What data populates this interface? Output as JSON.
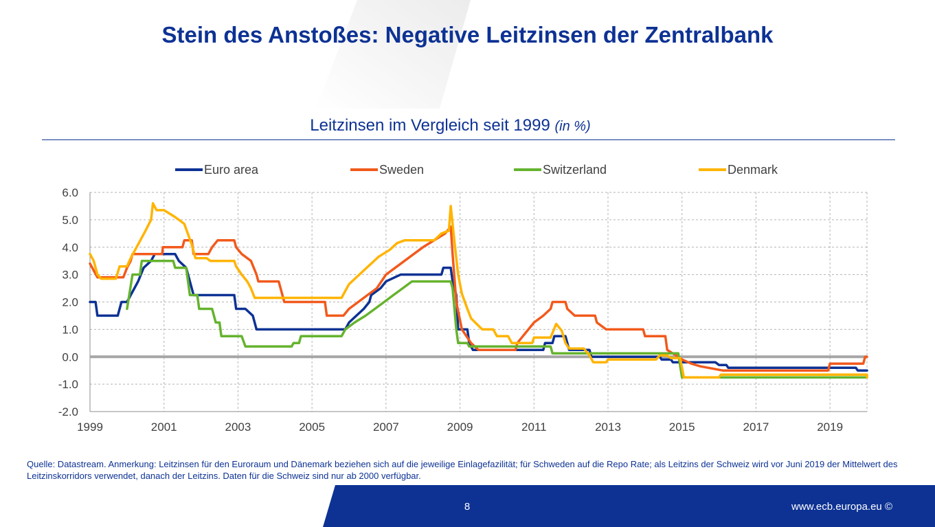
{
  "slide": {
    "title": "Stein des Anstoßes: Negative Leitzinsen der Zentralbank",
    "page_number": "8",
    "footer_url": "www.ecb.europa.eu ©",
    "footnote": "Quelle: Datastream. Anmerkung: Leitzinsen für den Euroraum und Dänemark beziehen sich auf die jeweilige Einlagefazilität; für Schweden auf die Repo Rate; als Leitzins der Schweiz wird vor Juni 2019 der Mittelwert des Leitzinskorridors verwendet, danach der  Leitzins. Daten für die Schweiz sind nur ab 2000 verfügbar.",
    "accent_color": "#0d3294"
  },
  "chart_data": {
    "type": "line",
    "title": "Leitzinsen im Vergleich seit 1999",
    "title_unit": "(in %)",
    "xlim": [
      1999,
      2020
    ],
    "ylim": [
      -2,
      6
    ],
    "x_ticks": [
      "1999",
      "2001",
      "2003",
      "2005",
      "2007",
      "2009",
      "2011",
      "2013",
      "2015",
      "2017",
      "2019"
    ],
    "y_ticks": [
      "6.0",
      "5.0",
      "4.0",
      "3.0",
      "2.0",
      "1.0",
      "0.0",
      "-1.0",
      "-2.0"
    ],
    "grid": "dashed",
    "legend_position": "top",
    "series": [
      {
        "name": "Euro area",
        "color": "#0d3294",
        "points": [
          [
            1999.0,
            2.0
          ],
          [
            1999.15,
            2.0
          ],
          [
            1999.2,
            1.5
          ],
          [
            1999.75,
            1.5
          ],
          [
            1999.85,
            2.0
          ],
          [
            2000.0,
            2.0
          ],
          [
            2000.1,
            2.25
          ],
          [
            2000.2,
            2.5
          ],
          [
            2000.3,
            2.75
          ],
          [
            2000.45,
            3.25
          ],
          [
            2000.65,
            3.5
          ],
          [
            2000.75,
            3.75
          ],
          [
            2001.3,
            3.75
          ],
          [
            2001.4,
            3.5
          ],
          [
            2001.6,
            3.25
          ],
          [
            2001.7,
            2.75
          ],
          [
            2001.8,
            2.25
          ],
          [
            2002.9,
            2.25
          ],
          [
            2002.95,
            1.75
          ],
          [
            2003.2,
            1.75
          ],
          [
            2003.4,
            1.5
          ],
          [
            2003.5,
            1.0
          ],
          [
            2005.9,
            1.0
          ],
          [
            2006.0,
            1.25
          ],
          [
            2006.2,
            1.5
          ],
          [
            2006.4,
            1.75
          ],
          [
            2006.55,
            2.0
          ],
          [
            2006.6,
            2.25
          ],
          [
            2006.85,
            2.5
          ],
          [
            2007.0,
            2.75
          ],
          [
            2007.4,
            3.0
          ],
          [
            2008.5,
            3.0
          ],
          [
            2008.55,
            3.25
          ],
          [
            2008.75,
            3.25
          ],
          [
            2008.8,
            2.75
          ],
          [
            2008.9,
            2.25
          ],
          [
            2008.95,
            1.0
          ],
          [
            2009.2,
            1.0
          ],
          [
            2009.25,
            0.5
          ],
          [
            2009.35,
            0.25
          ],
          [
            2011.25,
            0.25
          ],
          [
            2011.3,
            0.5
          ],
          [
            2011.5,
            0.5
          ],
          [
            2011.55,
            0.75
          ],
          [
            2011.85,
            0.75
          ],
          [
            2011.9,
            0.5
          ],
          [
            2011.95,
            0.25
          ],
          [
            2012.5,
            0.25
          ],
          [
            2012.55,
            0.0
          ],
          [
            2014.4,
            0.0
          ],
          [
            2014.45,
            -0.1
          ],
          [
            2014.7,
            -0.1
          ],
          [
            2014.75,
            -0.2
          ],
          [
            2015.9,
            -0.2
          ],
          [
            2016.0,
            -0.3
          ],
          [
            2016.2,
            -0.3
          ],
          [
            2016.25,
            -0.4
          ],
          [
            2019.7,
            -0.4
          ],
          [
            2019.75,
            -0.5
          ],
          [
            2020.0,
            -0.5
          ]
        ]
      },
      {
        "name": "Sweden",
        "color": "#f2591c",
        "points": [
          [
            1999.0,
            3.4
          ],
          [
            1999.1,
            3.15
          ],
          [
            1999.2,
            2.9
          ],
          [
            1999.9,
            2.9
          ],
          [
            2000.0,
            3.25
          ],
          [
            2000.1,
            3.5
          ],
          [
            2000.15,
            3.75
          ],
          [
            2000.95,
            3.75
          ],
          [
            2000.97,
            4.0
          ],
          [
            2001.5,
            4.0
          ],
          [
            2001.55,
            4.25
          ],
          [
            2001.75,
            4.25
          ],
          [
            2001.8,
            3.75
          ],
          [
            2002.2,
            3.75
          ],
          [
            2002.3,
            4.0
          ],
          [
            2002.45,
            4.25
          ],
          [
            2002.9,
            4.25
          ],
          [
            2002.95,
            4.0
          ],
          [
            2003.1,
            3.75
          ],
          [
            2003.35,
            3.5
          ],
          [
            2003.5,
            3.0
          ],
          [
            2003.55,
            2.75
          ],
          [
            2004.1,
            2.75
          ],
          [
            2004.15,
            2.5
          ],
          [
            2004.25,
            2.0
          ],
          [
            2005.35,
            2.0
          ],
          [
            2005.4,
            1.5
          ],
          [
            2005.85,
            1.5
          ],
          [
            2006.0,
            1.75
          ],
          [
            2006.25,
            2.0
          ],
          [
            2006.5,
            2.25
          ],
          [
            2006.75,
            2.5
          ],
          [
            2007.0,
            3.0
          ],
          [
            2007.25,
            3.25
          ],
          [
            2007.5,
            3.5
          ],
          [
            2007.75,
            3.75
          ],
          [
            2008.0,
            4.0
          ],
          [
            2008.3,
            4.25
          ],
          [
            2008.6,
            4.5
          ],
          [
            2008.75,
            4.75
          ],
          [
            2008.8,
            3.75
          ],
          [
            2008.9,
            2.0
          ],
          [
            2009.05,
            1.0
          ],
          [
            2009.3,
            0.5
          ],
          [
            2009.5,
            0.25
          ],
          [
            2010.5,
            0.25
          ],
          [
            2010.55,
            0.5
          ],
          [
            2010.7,
            0.75
          ],
          [
            2010.85,
            1.0
          ],
          [
            2011.0,
            1.25
          ],
          [
            2011.25,
            1.5
          ],
          [
            2011.45,
            1.75
          ],
          [
            2011.5,
            2.0
          ],
          [
            2011.85,
            2.0
          ],
          [
            2011.9,
            1.75
          ],
          [
            2012.1,
            1.5
          ],
          [
            2012.65,
            1.5
          ],
          [
            2012.7,
            1.25
          ],
          [
            2012.95,
            1.0
          ],
          [
            2013.95,
            1.0
          ],
          [
            2014.0,
            0.75
          ],
          [
            2014.55,
            0.75
          ],
          [
            2014.6,
            0.25
          ],
          [
            2014.9,
            0.0
          ],
          [
            2015.0,
            -0.1
          ],
          [
            2015.25,
            -0.25
          ],
          [
            2015.5,
            -0.35
          ],
          [
            2016.1,
            -0.5
          ],
          [
            2018.95,
            -0.5
          ],
          [
            2019.0,
            -0.25
          ],
          [
            2019.9,
            -0.25
          ],
          [
            2019.95,
            0.0
          ],
          [
            2020.0,
            0.0
          ]
        ]
      },
      {
        "name": "Switzerland",
        "color": "#65b32e",
        "points": [
          [
            2000.0,
            1.75
          ],
          [
            2000.15,
            3.0
          ],
          [
            2000.35,
            3.0
          ],
          [
            2000.4,
            3.5
          ],
          [
            2001.25,
            3.5
          ],
          [
            2001.3,
            3.25
          ],
          [
            2001.6,
            3.25
          ],
          [
            2001.7,
            2.25
          ],
          [
            2001.9,
            2.25
          ],
          [
            2001.95,
            1.75
          ],
          [
            2002.3,
            1.75
          ],
          [
            2002.4,
            1.25
          ],
          [
            2002.5,
            1.25
          ],
          [
            2002.55,
            0.75
          ],
          [
            2003.1,
            0.75
          ],
          [
            2003.2,
            0.375
          ],
          [
            2004.45,
            0.375
          ],
          [
            2004.5,
            0.5
          ],
          [
            2004.65,
            0.5
          ],
          [
            2004.7,
            0.75
          ],
          [
            2005.8,
            0.75
          ],
          [
            2005.9,
            1.0
          ],
          [
            2006.15,
            1.25
          ],
          [
            2006.45,
            1.5
          ],
          [
            2006.7,
            1.75
          ],
          [
            2006.95,
            2.0
          ],
          [
            2007.2,
            2.25
          ],
          [
            2007.45,
            2.5
          ],
          [
            2007.7,
            2.75
          ],
          [
            2008.75,
            2.75
          ],
          [
            2008.8,
            2.5
          ],
          [
            2008.85,
            1.75
          ],
          [
            2008.9,
            1.0
          ],
          [
            2008.95,
            0.5
          ],
          [
            2009.2,
            0.5
          ],
          [
            2009.25,
            0.375
          ],
          [
            2011.45,
            0.375
          ],
          [
            2011.5,
            0.125
          ],
          [
            2014.9,
            0.125
          ],
          [
            2015.0,
            -0.75
          ],
          [
            2020.0,
            -0.75
          ]
        ]
      },
      {
        "name": "Denmark",
        "color": "#ffb400",
        "points": [
          [
            1999.0,
            3.75
          ],
          [
            1999.1,
            3.5
          ],
          [
            1999.2,
            3.0
          ],
          [
            1999.3,
            2.85
          ],
          [
            1999.7,
            2.85
          ],
          [
            1999.8,
            3.3
          ],
          [
            2000.0,
            3.3
          ],
          [
            2000.1,
            3.6
          ],
          [
            2000.3,
            4.1
          ],
          [
            2000.4,
            4.35
          ],
          [
            2000.5,
            4.6
          ],
          [
            2000.65,
            5.0
          ],
          [
            2000.7,
            5.6
          ],
          [
            2000.8,
            5.35
          ],
          [
            2001.0,
            5.35
          ],
          [
            2001.3,
            5.1
          ],
          [
            2001.4,
            5.0
          ],
          [
            2001.55,
            4.85
          ],
          [
            2001.75,
            4.1
          ],
          [
            2001.85,
            3.6
          ],
          [
            2002.15,
            3.6
          ],
          [
            2002.25,
            3.5
          ],
          [
            2002.9,
            3.5
          ],
          [
            2002.95,
            3.3
          ],
          [
            2003.1,
            3.0
          ],
          [
            2003.25,
            2.75
          ],
          [
            2003.35,
            2.5
          ],
          [
            2003.45,
            2.15
          ],
          [
            2005.8,
            2.15
          ],
          [
            2005.9,
            2.4
          ],
          [
            2006.0,
            2.65
          ],
          [
            2006.2,
            2.9
          ],
          [
            2006.4,
            3.15
          ],
          [
            2006.6,
            3.4
          ],
          [
            2006.8,
            3.65
          ],
          [
            2007.1,
            3.9
          ],
          [
            2007.3,
            4.15
          ],
          [
            2007.5,
            4.25
          ],
          [
            2008.3,
            4.25
          ],
          [
            2008.5,
            4.5
          ],
          [
            2008.7,
            4.6
          ],
          [
            2008.75,
            5.5
          ],
          [
            2008.85,
            4.2
          ],
          [
            2008.95,
            3.0
          ],
          [
            2009.05,
            2.3
          ],
          [
            2009.2,
            1.75
          ],
          [
            2009.3,
            1.4
          ],
          [
            2009.45,
            1.2
          ],
          [
            2009.6,
            1.0
          ],
          [
            2009.9,
            1.0
          ],
          [
            2010.0,
            0.75
          ],
          [
            2010.3,
            0.75
          ],
          [
            2010.4,
            0.5
          ],
          [
            2010.95,
            0.5
          ],
          [
            2011.0,
            0.7
          ],
          [
            2011.45,
            0.7
          ],
          [
            2011.6,
            1.2
          ],
          [
            2011.75,
            0.95
          ],
          [
            2011.85,
            0.5
          ],
          [
            2011.95,
            0.3
          ],
          [
            2012.35,
            0.3
          ],
          [
            2012.5,
            0.05
          ],
          [
            2012.6,
            -0.2
          ],
          [
            2012.95,
            -0.2
          ],
          [
            2013.0,
            -0.1
          ],
          [
            2014.3,
            -0.1
          ],
          [
            2014.4,
            0.05
          ],
          [
            2014.6,
            0.05
          ],
          [
            2014.7,
            -0.05
          ],
          [
            2014.95,
            -0.05
          ],
          [
            2015.05,
            -0.75
          ],
          [
            2016.0,
            -0.75
          ],
          [
            2016.05,
            -0.65
          ],
          [
            2020.0,
            -0.65
          ],
          [
            2020.0,
            -0.75
          ]
        ]
      }
    ]
  }
}
